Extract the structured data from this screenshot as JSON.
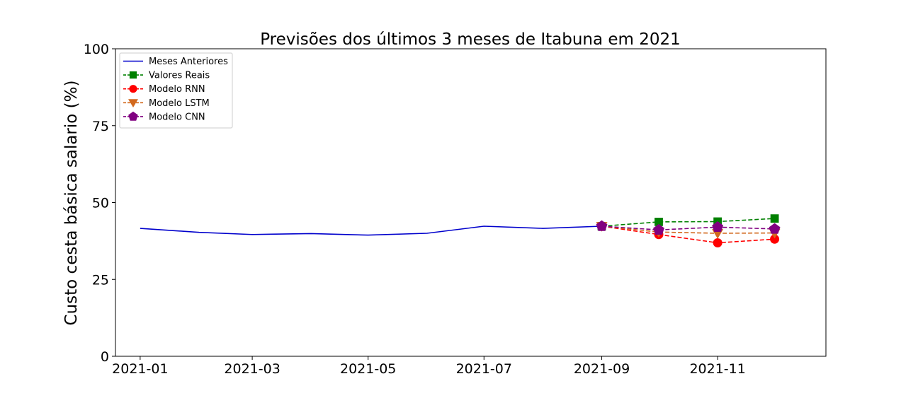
{
  "chart_data": {
    "type": "line",
    "title": "Previsões dos últimos 3 meses de Itabuna em 2021",
    "xlabel": "",
    "ylabel": "Custo cesta básica salario (%)",
    "ylim": [
      0,
      100
    ],
    "yticks": [
      0,
      25,
      50,
      75,
      100
    ],
    "xlim": [
      "2020-12-19",
      "2021-12-28"
    ],
    "xticks": [
      "2021-01",
      "2021-03",
      "2021-05",
      "2021-07",
      "2021-09",
      "2021-11"
    ],
    "grid": false,
    "legend_position": "top-left",
    "series": [
      {
        "name": "Meses Anteriores",
        "color": "#0000cc",
        "line_style": "solid",
        "marker": "none",
        "points": [
          {
            "x": "2021-01-01",
            "y": 41.6
          },
          {
            "x": "2021-02-01",
            "y": 40.3
          },
          {
            "x": "2021-03-01",
            "y": 39.6
          },
          {
            "x": "2021-04-01",
            "y": 39.9
          },
          {
            "x": "2021-05-01",
            "y": 39.4
          },
          {
            "x": "2021-06-01",
            "y": 40.0
          },
          {
            "x": "2021-07-01",
            "y": 42.3
          },
          {
            "x": "2021-08-01",
            "y": 41.6
          },
          {
            "x": "2021-09-01",
            "y": 42.3
          }
        ]
      },
      {
        "name": "Valores Reais",
        "color": "#008000",
        "line_style": "dashed",
        "marker": "square",
        "points": [
          {
            "x": "2021-09-01",
            "y": 42.3
          },
          {
            "x": "2021-10-01",
            "y": 43.7
          },
          {
            "x": "2021-11-01",
            "y": 43.8
          },
          {
            "x": "2021-12-01",
            "y": 44.8
          }
        ]
      },
      {
        "name": "Modelo RNN",
        "color": "#ff0000",
        "line_style": "dashed",
        "marker": "circle",
        "points": [
          {
            "x": "2021-09-01",
            "y": 42.3
          },
          {
            "x": "2021-10-01",
            "y": 39.6
          },
          {
            "x": "2021-11-01",
            "y": 36.9
          },
          {
            "x": "2021-12-01",
            "y": 38.1
          }
        ]
      },
      {
        "name": "Modelo LSTM",
        "color": "#d2691e",
        "line_style": "dashed",
        "marker": "triangle-down",
        "points": [
          {
            "x": "2021-09-01",
            "y": 42.3
          },
          {
            "x": "2021-10-01",
            "y": 40.4
          },
          {
            "x": "2021-11-01",
            "y": 40.0
          },
          {
            "x": "2021-12-01",
            "y": 40.1
          }
        ]
      },
      {
        "name": "Modelo CNN",
        "color": "#800080",
        "line_style": "dashed",
        "marker": "pentagon",
        "points": [
          {
            "x": "2021-09-01",
            "y": 42.3
          },
          {
            "x": "2021-10-01",
            "y": 41.1
          },
          {
            "x": "2021-11-01",
            "y": 42.0
          },
          {
            "x": "2021-12-01",
            "y": 41.4
          }
        ]
      }
    ]
  }
}
